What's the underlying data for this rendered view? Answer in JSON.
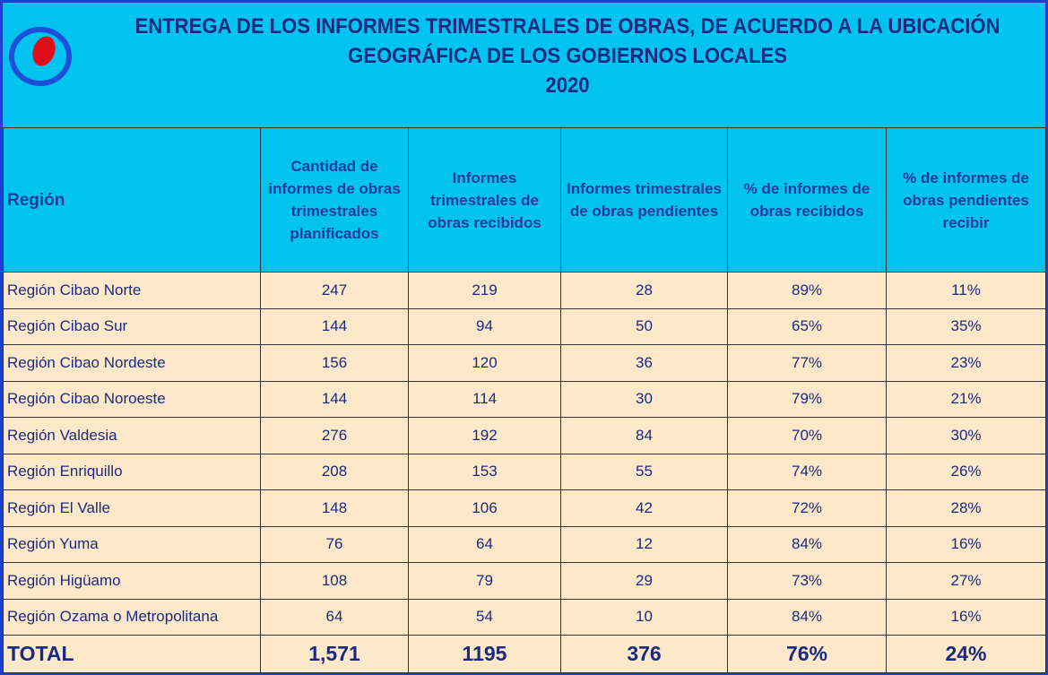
{
  "header": {
    "title_lines": [
      "ENTREGA DE LOS INFORMES TRIMESTRALES DE OBRAS, DE ACUERDO A LA UBICACIÓN",
      "GEOGRÁFICA DE LOS GOBIERNOS LOCALES",
      "2020"
    ]
  },
  "table": {
    "columns": [
      "Región",
      "Cantidad de informes de obras trimestrales planificados",
      "Informes trimestrales de obras recibidos",
      "Informes trimestrales de obras pendientes",
      "% de informes de obras recibidos",
      "% de informes de obras pendientes recibir"
    ],
    "rows": [
      [
        "Región Cibao Norte",
        "247",
        "219",
        "28",
        "89%",
        "11%"
      ],
      [
        "Región Cibao Sur",
        "144",
        "94",
        "50",
        "65%",
        "35%"
      ],
      [
        "Región Cibao Nordeste",
        "156",
        "120",
        "36",
        "77%",
        "23%"
      ],
      [
        "Región Cibao Noroeste",
        "144",
        "114",
        "30",
        "79%",
        "21%"
      ],
      [
        "Región Valdesia",
        "276",
        "192",
        "84",
        "70%",
        "30%"
      ],
      [
        "Región Enriquillo",
        "208",
        "153",
        "55",
        "74%",
        "26%"
      ],
      [
        "Región El Valle",
        "148",
        "106",
        "42",
        "72%",
        "28%"
      ],
      [
        "Región Yuma",
        "76",
        "64",
        "12",
        "84%",
        "16%"
      ],
      [
        "Región Higüamo",
        "108",
        "79",
        "29",
        "73%",
        "27%"
      ],
      [
        "Región Ozama o Metropolitana",
        "64",
        "54",
        "10",
        "84%",
        "16%"
      ]
    ],
    "total": [
      "TOTAL",
      "1,571",
      "1195",
      "376",
      "76%",
      "24%"
    ]
  }
}
